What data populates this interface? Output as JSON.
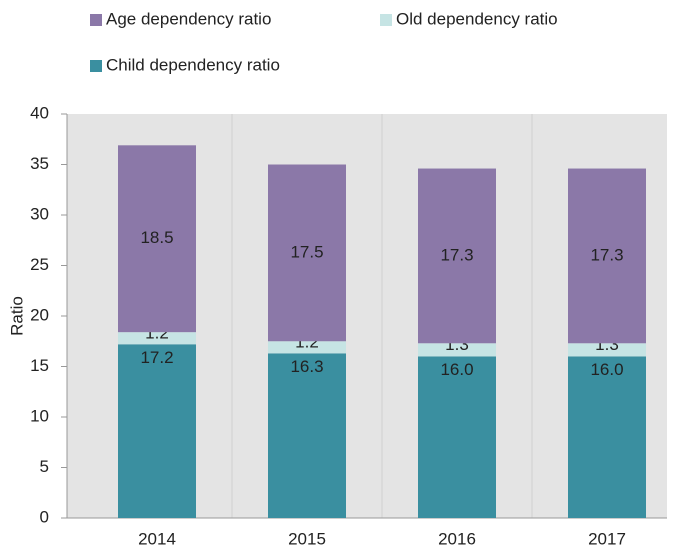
{
  "chart_data": {
    "type": "stacked_bar",
    "y_label": "Ratio",
    "categories": [
      "2014",
      "2015",
      "2016",
      "2017"
    ],
    "series": [
      {
        "name": "Child dependency ratio",
        "color": "#3a8fa0",
        "values": [
          17.2,
          16.3,
          16.0,
          16.0
        ],
        "value_labels": [
          "17.2",
          "16.3",
          "16.0",
          "16.0"
        ]
      },
      {
        "name": "Old dependency ratio",
        "color": "#c6e4e4",
        "values": [
          1.2,
          1.2,
          1.3,
          1.3
        ]
      },
      {
        "name": "Age dependency ratio",
        "color": "#8b78a8",
        "values": [
          18.5,
          17.5,
          17.3,
          17.3
        ]
      }
    ],
    "ylim": [
      0,
      40
    ],
    "yticks": [
      0,
      5,
      10,
      15,
      20,
      25,
      30,
      35,
      40
    ],
    "grid": true,
    "legend": "top"
  }
}
